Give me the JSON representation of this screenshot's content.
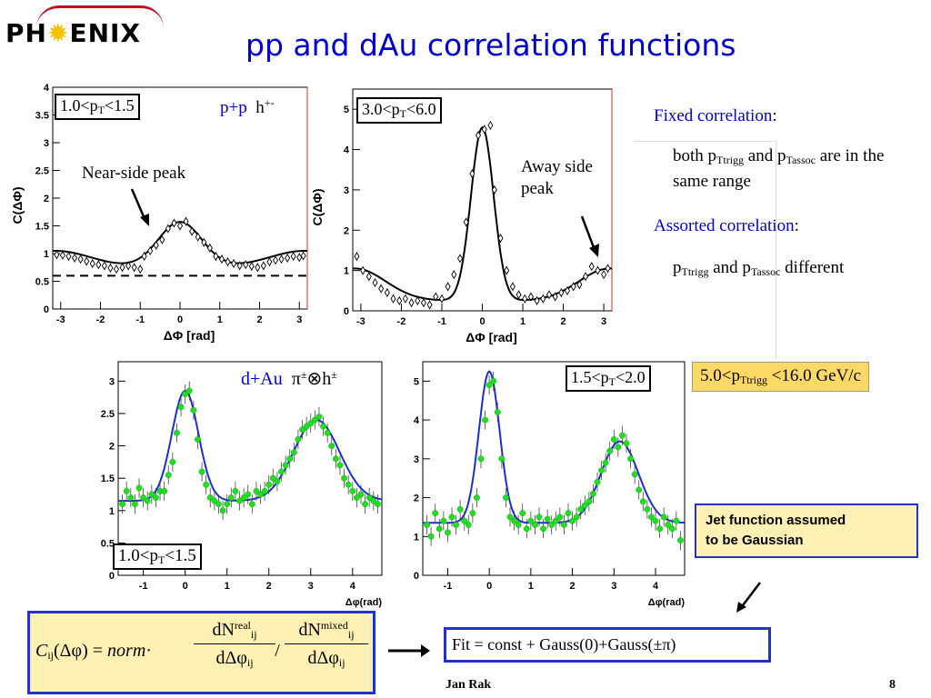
{
  "header": {
    "logo_text_left": "PH",
    "logo_text_right": "ENIX",
    "title": "pp and dAu correlation functions"
  },
  "plot_labels": {
    "pp_box": "1.0<p",
    "pp_box_sub": "T",
    "pp_box_end": "<1.5",
    "pp_species": "p+p",
    "pp_trigger": "h",
    "pp_trigger_sup": "+-",
    "near_side": "Near-side peak",
    "pp2_box": "3.0<p",
    "pp2_box_sub": "T",
    "pp2_box_end": "<6.0",
    "away_side": "Away side peak",
    "dau_species": "d+Au",
    "dau_pairs": "π",
    "dau_pairs_sup": "±",
    "dau_pairs_mid": "⊗h",
    "dau_pairs_sup2": "±",
    "dau1_box": "1.0<p",
    "dau1_box_sub": "T",
    "dau1_box_end": "<1.5",
    "dau2_box": "1.5<p",
    "dau2_box_sub": "T",
    "dau2_box_end": "<2.0"
  },
  "right_panel": {
    "fixed_label": "Fixed correlation",
    "fixed_colon": ":",
    "fixed_text_a": "both p",
    "fixed_sub1": "Ttrigg",
    "fixed_text_b": " and p",
    "fixed_sub2": "Tassoc",
    "fixed_text_c": " are in the same range",
    "assorted_label": "Assorted correlation",
    "assorted_colon": ":",
    "assorted_text_a": "p",
    "assorted_sub1": "Ttrigg",
    "assorted_text_b": " and p",
    "assorted_sub2": "Tassoc",
    "assorted_text_c": " different",
    "trigger_range_a": "5.0<p",
    "trigger_range_sub": "Ttrigg",
    "trigger_range_b": " <16.0 GeV/c",
    "jet_line1": "Jet function assumed",
    "jet_line2": "to be Gaussian",
    "fit": "Fit = const + Gauss(0)+Gauss(±π)"
  },
  "formula": {
    "lhs": "C",
    "lhs_sub": "ij",
    "lhs_arg": "(Δφ) = ",
    "norm": "norm",
    "dot": "·",
    "num1": "dN",
    "num1_sup": "real",
    "num1_sub": "ij",
    "den1": "dΔφ",
    "den1_sub": "ij",
    "slash": "/",
    "num2": "dN",
    "num2_sup": "mixed",
    "num2_sub": "ij",
    "den2": "dΔφ",
    "den2_sub": "ij"
  },
  "footer": {
    "author": "Jan Rak",
    "page": "8"
  },
  "chart_data": [
    {
      "type": "scatter",
      "id": "pp_low",
      "xlabel": "ΔΦ  [rad]",
      "ylabel": "C(ΔΦ)",
      "xlim": [
        -3.2,
        3.2
      ],
      "ylim": [
        0,
        4
      ],
      "xticks": [
        -3,
        -2,
        -1,
        0,
        1,
        2,
        3
      ],
      "yticks": [
        0,
        0.5,
        1,
        1.5,
        2,
        2.5,
        3,
        3.5,
        4
      ],
      "marker": "open-diamond",
      "dashed_line_y": 0.6,
      "fit": {
        "const": 0.75,
        "near_amp": 0.82,
        "near_sigma": 0.55,
        "away_amp": 0.3,
        "away_sigma": 0.9
      },
      "points": [
        {
          "x": -3.1,
          "y": 0.98
        },
        {
          "x": -2.95,
          "y": 0.97
        },
        {
          "x": -2.8,
          "y": 0.95
        },
        {
          "x": -2.65,
          "y": 0.92
        },
        {
          "x": -2.5,
          "y": 0.9
        },
        {
          "x": -2.35,
          "y": 0.86
        },
        {
          "x": -2.2,
          "y": 0.82
        },
        {
          "x": -2.05,
          "y": 0.8
        },
        {
          "x": -1.9,
          "y": 0.78
        },
        {
          "x": -1.75,
          "y": 0.74
        },
        {
          "x": -1.6,
          "y": 0.72
        },
        {
          "x": -1.45,
          "y": 0.75
        },
        {
          "x": -1.3,
          "y": 0.78
        },
        {
          "x": -1.15,
          "y": 0.75
        },
        {
          "x": -1.0,
          "y": 0.72
        },
        {
          "x": -0.9,
          "y": 0.95
        },
        {
          "x": -0.75,
          "y": 1.05
        },
        {
          "x": -0.6,
          "y": 1.15
        },
        {
          "x": -0.45,
          "y": 1.25
        },
        {
          "x": -0.3,
          "y": 1.45
        },
        {
          "x": -0.15,
          "y": 1.55
        },
        {
          "x": 0.0,
          "y": 1.5
        },
        {
          "x": 0.15,
          "y": 1.58
        },
        {
          "x": 0.3,
          "y": 1.4
        },
        {
          "x": 0.45,
          "y": 1.3
        },
        {
          "x": 0.6,
          "y": 1.2
        },
        {
          "x": 0.75,
          "y": 1.1
        },
        {
          "x": 0.9,
          "y": 0.95
        },
        {
          "x": 1.05,
          "y": 0.9
        },
        {
          "x": 1.2,
          "y": 0.85
        },
        {
          "x": 1.35,
          "y": 0.82
        },
        {
          "x": 1.5,
          "y": 0.78
        },
        {
          "x": 1.65,
          "y": 0.8
        },
        {
          "x": 1.8,
          "y": 0.77
        },
        {
          "x": 1.95,
          "y": 0.75
        },
        {
          "x": 2.1,
          "y": 0.78
        },
        {
          "x": 2.25,
          "y": 0.85
        },
        {
          "x": 2.4,
          "y": 0.88
        },
        {
          "x": 2.55,
          "y": 0.9
        },
        {
          "x": 2.7,
          "y": 0.92
        },
        {
          "x": 2.85,
          "y": 0.95
        },
        {
          "x": 3.0,
          "y": 0.93
        },
        {
          "x": 3.1,
          "y": 0.96
        }
      ]
    },
    {
      "type": "scatter",
      "id": "pp_high",
      "xlabel": "ΔΦ  [rad]",
      "ylabel": "C(ΔΦ)",
      "xlim": [
        -3.2,
        3.2
      ],
      "ylim": [
        0,
        5.5
      ],
      "xticks": [
        -3,
        -2,
        -1,
        0,
        1,
        2,
        3
      ],
      "yticks": [
        0,
        1,
        2,
        3,
        4,
        5
      ],
      "marker": "open-diamond",
      "fit": {
        "const": 0.25,
        "near_amp": 4.3,
        "near_sigma": 0.28,
        "away_amp": 0.8,
        "away_sigma": 0.75
      },
      "points": [
        {
          "x": -3.1,
          "y": 1.35
        },
        {
          "x": -2.95,
          "y": 1.0
        },
        {
          "x": -2.8,
          "y": 0.85
        },
        {
          "x": -2.65,
          "y": 0.7
        },
        {
          "x": -2.5,
          "y": 0.55
        },
        {
          "x": -2.35,
          "y": 0.45
        },
        {
          "x": -2.2,
          "y": 0.3
        },
        {
          "x": -2.05,
          "y": 0.25
        },
        {
          "x": -1.9,
          "y": 0.3
        },
        {
          "x": -1.75,
          "y": 0.2
        },
        {
          "x": -1.6,
          "y": 0.25
        },
        {
          "x": -1.45,
          "y": 0.2
        },
        {
          "x": -1.3,
          "y": 0.15
        },
        {
          "x": -1.15,
          "y": 0.35
        },
        {
          "x": -1.0,
          "y": 0.3
        },
        {
          "x": -0.85,
          "y": 0.6
        },
        {
          "x": -0.7,
          "y": 0.9
        },
        {
          "x": -0.55,
          "y": 1.3
        },
        {
          "x": -0.4,
          "y": 2.2
        },
        {
          "x": -0.25,
          "y": 3.4
        },
        {
          "x": -0.1,
          "y": 4.35
        },
        {
          "x": 0.05,
          "y": 4.5
        },
        {
          "x": 0.2,
          "y": 4.6
        },
        {
          "x": 0.3,
          "y": 3.0
        },
        {
          "x": 0.45,
          "y": 1.8
        },
        {
          "x": 0.6,
          "y": 1.0
        },
        {
          "x": 0.75,
          "y": 0.6
        },
        {
          "x": 0.9,
          "y": 0.4
        },
        {
          "x": 1.05,
          "y": 0.3
        },
        {
          "x": 1.2,
          "y": 0.35
        },
        {
          "x": 1.35,
          "y": 0.25
        },
        {
          "x": 1.5,
          "y": 0.3
        },
        {
          "x": 1.65,
          "y": 0.4
        },
        {
          "x": 1.8,
          "y": 0.35
        },
        {
          "x": 1.95,
          "y": 0.45
        },
        {
          "x": 2.1,
          "y": 0.5
        },
        {
          "x": 2.25,
          "y": 0.6
        },
        {
          "x": 2.4,
          "y": 0.65
        },
        {
          "x": 2.55,
          "y": 0.85
        },
        {
          "x": 2.7,
          "y": 1.1
        },
        {
          "x": 2.85,
          "y": 1.0
        },
        {
          "x": 3.0,
          "y": 0.9
        },
        {
          "x": 3.1,
          "y": 1.05
        }
      ]
    },
    {
      "type": "scatter",
      "id": "dau_low",
      "xlabel": "Δφ(rad)",
      "ylabel": "",
      "xlim": [
        -1.6,
        4.7
      ],
      "ylim": [
        0,
        3.3
      ],
      "xticks": [
        -1,
        0,
        1,
        2,
        3,
        4
      ],
      "yticks": [
        0,
        0.5,
        1,
        1.5,
        2,
        2.5,
        3
      ],
      "marker": "green-dot",
      "fit": {
        "const": 1.15,
        "near_amp": 1.7,
        "near_sigma": 0.32,
        "away_amp": 1.25,
        "away_sigma": 0.55,
        "away_center": 3.14
      },
      "points": [
        {
          "x": -1.5,
          "y": 1.1
        },
        {
          "x": -1.4,
          "y": 1.3
        },
        {
          "x": -1.3,
          "y": 1.2
        },
        {
          "x": -1.2,
          "y": 1.1
        },
        {
          "x": -1.1,
          "y": 1.35
        },
        {
          "x": -1.0,
          "y": 1.2
        },
        {
          "x": -0.9,
          "y": 1.15
        },
        {
          "x": -0.8,
          "y": 1.25
        },
        {
          "x": -0.7,
          "y": 1.2
        },
        {
          "x": -0.6,
          "y": 1.3
        },
        {
          "x": -0.5,
          "y": 1.3
        },
        {
          "x": -0.4,
          "y": 1.55
        },
        {
          "x": -0.3,
          "y": 1.75
        },
        {
          "x": -0.2,
          "y": 2.2
        },
        {
          "x": -0.1,
          "y": 2.6
        },
        {
          "x": 0.0,
          "y": 2.8
        },
        {
          "x": 0.1,
          "y": 2.85
        },
        {
          "x": 0.2,
          "y": 2.55
        },
        {
          "x": 0.3,
          "y": 2.1
        },
        {
          "x": 0.4,
          "y": 1.6
        },
        {
          "x": 0.5,
          "y": 1.4
        },
        {
          "x": 0.6,
          "y": 1.2
        },
        {
          "x": 0.7,
          "y": 1.15
        },
        {
          "x": 0.8,
          "y": 1.1
        },
        {
          "x": 0.9,
          "y": 1.0
        },
        {
          "x": 1.0,
          "y": 1.1
        },
        {
          "x": 1.1,
          "y": 1.2
        },
        {
          "x": 1.2,
          "y": 1.3
        },
        {
          "x": 1.3,
          "y": 1.15
        },
        {
          "x": 1.4,
          "y": 1.2
        },
        {
          "x": 1.5,
          "y": 1.25
        },
        {
          "x": 1.6,
          "y": 1.1
        },
        {
          "x": 1.7,
          "y": 1.3
        },
        {
          "x": 1.8,
          "y": 1.25
        },
        {
          "x": 1.9,
          "y": 1.3
        },
        {
          "x": 2.0,
          "y": 1.4
        },
        {
          "x": 2.1,
          "y": 1.5
        },
        {
          "x": 2.2,
          "y": 1.45
        },
        {
          "x": 2.3,
          "y": 1.6
        },
        {
          "x": 2.4,
          "y": 1.7
        },
        {
          "x": 2.5,
          "y": 1.8
        },
        {
          "x": 2.6,
          "y": 1.9
        },
        {
          "x": 2.7,
          "y": 2.1
        },
        {
          "x": 2.8,
          "y": 2.25
        },
        {
          "x": 2.9,
          "y": 2.3
        },
        {
          "x": 3.0,
          "y": 2.35
        },
        {
          "x": 3.1,
          "y": 2.4
        },
        {
          "x": 3.2,
          "y": 2.45
        },
        {
          "x": 3.3,
          "y": 2.3
        },
        {
          "x": 3.4,
          "y": 2.2
        },
        {
          "x": 3.5,
          "y": 2.0
        },
        {
          "x": 3.6,
          "y": 1.8
        },
        {
          "x": 3.7,
          "y": 1.7
        },
        {
          "x": 3.8,
          "y": 1.5
        },
        {
          "x": 3.9,
          "y": 1.4
        },
        {
          "x": 4.0,
          "y": 1.3
        },
        {
          "x": 4.1,
          "y": 1.2
        },
        {
          "x": 4.2,
          "y": 1.25
        },
        {
          "x": 4.3,
          "y": 1.1
        },
        {
          "x": 4.4,
          "y": 1.2
        },
        {
          "x": 4.5,
          "y": 1.15
        },
        {
          "x": 4.6,
          "y": 1.1
        }
      ]
    },
    {
      "type": "scatter",
      "id": "dau_high",
      "xlabel": "Δφ(rad)",
      "ylabel": "",
      "xlim": [
        -1.6,
        4.7
      ],
      "ylim": [
        0,
        5.5
      ],
      "xticks": [
        -1,
        0,
        1,
        2,
        3,
        4
      ],
      "yticks": [
        0,
        1,
        2,
        3,
        4,
        5
      ],
      "marker": "green-dot",
      "fit": {
        "const": 1.35,
        "near_amp": 3.9,
        "near_sigma": 0.25,
        "away_amp": 2.1,
        "away_sigma": 0.45,
        "away_center": 3.14
      },
      "points": [
        {
          "x": -1.5,
          "y": 1.3
        },
        {
          "x": -1.4,
          "y": 1.0
        },
        {
          "x": -1.3,
          "y": 1.6
        },
        {
          "x": -1.2,
          "y": 1.2
        },
        {
          "x": -1.1,
          "y": 1.4
        },
        {
          "x": -1.0,
          "y": 1.1
        },
        {
          "x": -0.9,
          "y": 1.5
        },
        {
          "x": -0.8,
          "y": 1.3
        },
        {
          "x": -0.7,
          "y": 1.7
        },
        {
          "x": -0.6,
          "y": 1.4
        },
        {
          "x": -0.5,
          "y": 1.3
        },
        {
          "x": -0.4,
          "y": 1.6
        },
        {
          "x": -0.3,
          "y": 2.0
        },
        {
          "x": -0.2,
          "y": 3.0
        },
        {
          "x": -0.1,
          "y": 4.0
        },
        {
          "x": 0.0,
          "y": 4.9
        },
        {
          "x": 0.1,
          "y": 5.0
        },
        {
          "x": 0.2,
          "y": 4.2
        },
        {
          "x": 0.3,
          "y": 3.0
        },
        {
          "x": 0.4,
          "y": 2.0
        },
        {
          "x": 0.5,
          "y": 1.5
        },
        {
          "x": 0.6,
          "y": 1.4
        },
        {
          "x": 0.7,
          "y": 1.3
        },
        {
          "x": 0.8,
          "y": 1.6
        },
        {
          "x": 0.9,
          "y": 1.2
        },
        {
          "x": 1.0,
          "y": 1.4
        },
        {
          "x": 1.1,
          "y": 1.3
        },
        {
          "x": 1.2,
          "y": 1.5
        },
        {
          "x": 1.3,
          "y": 1.2
        },
        {
          "x": 1.4,
          "y": 1.45
        },
        {
          "x": 1.5,
          "y": 1.3
        },
        {
          "x": 1.6,
          "y": 1.4
        },
        {
          "x": 1.7,
          "y": 1.5
        },
        {
          "x": 1.8,
          "y": 1.3
        },
        {
          "x": 1.9,
          "y": 1.6
        },
        {
          "x": 2.0,
          "y": 1.4
        },
        {
          "x": 2.1,
          "y": 1.5
        },
        {
          "x": 2.2,
          "y": 1.7
        },
        {
          "x": 2.3,
          "y": 1.8
        },
        {
          "x": 2.4,
          "y": 1.9
        },
        {
          "x": 2.5,
          "y": 2.1
        },
        {
          "x": 2.6,
          "y": 2.4
        },
        {
          "x": 2.7,
          "y": 2.7
        },
        {
          "x": 2.8,
          "y": 2.9
        },
        {
          "x": 2.9,
          "y": 3.2
        },
        {
          "x": 3.0,
          "y": 3.5
        },
        {
          "x": 3.1,
          "y": 3.3
        },
        {
          "x": 3.2,
          "y": 3.6
        },
        {
          "x": 3.3,
          "y": 3.4
        },
        {
          "x": 3.4,
          "y": 3.0
        },
        {
          "x": 3.5,
          "y": 2.6
        },
        {
          "x": 3.6,
          "y": 2.2
        },
        {
          "x": 3.7,
          "y": 1.9
        },
        {
          "x": 3.8,
          "y": 1.7
        },
        {
          "x": 3.9,
          "y": 1.5
        },
        {
          "x": 4.0,
          "y": 1.4
        },
        {
          "x": 4.1,
          "y": 1.2
        },
        {
          "x": 4.2,
          "y": 1.5
        },
        {
          "x": 4.3,
          "y": 1.3
        },
        {
          "x": 4.4,
          "y": 1.2
        },
        {
          "x": 4.5,
          "y": 1.4
        },
        {
          "x": 4.6,
          "y": 0.9
        }
      ]
    }
  ]
}
